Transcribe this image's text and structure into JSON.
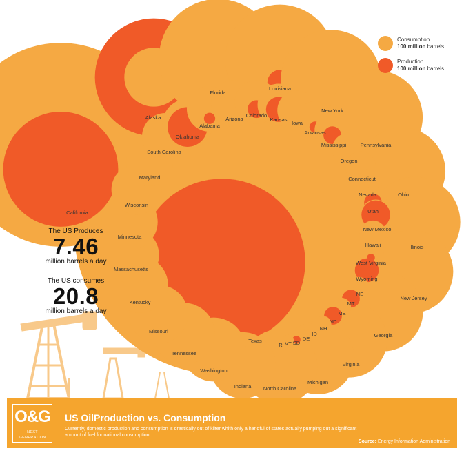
{
  "legend": {
    "consumption_label": "Consumption",
    "consumption_unit": "100 million",
    "production_label": "Production",
    "production_unit": "100 million",
    "unit_suffix": "barrels",
    "consumption_color": "#f5a943",
    "production_color": "#f05a28"
  },
  "stats": {
    "produces_caption": "The US Produces",
    "produces_value": "7.46",
    "produces_unit": "million barrels a day",
    "consumes_caption": "The US consumes",
    "consumes_value": "20.8",
    "consumes_unit": "million barrels a day"
  },
  "footer": {
    "logo_main": "O&G",
    "logo_sub": "NEXT GENERATION",
    "title": "US OilProduction vs. Consumption",
    "description": "Currently, domestic production and consumption is drastically out of kilter whith only a handful of states actually pumping out a significant amount of fuel for national consumption.",
    "source_label": "Source:",
    "source_value": "Energy Information Administration"
  },
  "chart_data": {
    "type": "bubble",
    "title": "",
    "series": [
      {
        "name": "Consumption",
        "color": "#f5a943"
      },
      {
        "name": "Production",
        "color": "#f05a28"
      }
    ],
    "units": "100 million barrels",
    "states": [
      {
        "name": "Texas",
        "consumption": 14.0,
        "production": 4.4
      },
      {
        "name": "California",
        "consumption": 6.6,
        "production": 2.1
      },
      {
        "name": "Alaska",
        "consumption": 0.55,
        "production": 2.2
      },
      {
        "name": "Florida",
        "consumption": 2.2,
        "production": 0
      },
      {
        "name": "Louisiana",
        "consumption": 1.9,
        "production": 0.1
      },
      {
        "name": "New York",
        "consumption": 1.6,
        "production": 0
      },
      {
        "name": "Pennsylvania",
        "consumption": 1.4,
        "production": 0
      },
      {
        "name": "Ohio",
        "consumption": 1.2,
        "production": 0
      },
      {
        "name": "Illinois",
        "consumption": 1.3,
        "production": 0
      },
      {
        "name": "New Jersey",
        "consumption": 1.1,
        "production": 0
      },
      {
        "name": "Georgia",
        "consumption": 1.0,
        "production": 0
      },
      {
        "name": "Virginia",
        "consumption": 0.9,
        "production": 0
      },
      {
        "name": "Michigan",
        "consumption": 0.85,
        "production": 0
      },
      {
        "name": "North Carolina",
        "consumption": 0.9,
        "production": 0
      },
      {
        "name": "Indiana",
        "consumption": 0.7,
        "production": 0
      },
      {
        "name": "Washington",
        "consumption": 0.65,
        "production": 0
      },
      {
        "name": "Tennessee",
        "consumption": 0.6,
        "production": 0
      },
      {
        "name": "Missouri",
        "consumption": 0.55,
        "production": 0
      },
      {
        "name": "Kentucky",
        "consumption": 0.5,
        "production": 0
      },
      {
        "name": "Massachusetts",
        "consumption": 0.5,
        "production": 0
      },
      {
        "name": "Minnesota",
        "consumption": 0.5,
        "production": 0
      },
      {
        "name": "Wisconsin",
        "consumption": 0.4,
        "production": 0
      },
      {
        "name": "Maryland",
        "consumption": 0.35,
        "production": 0
      },
      {
        "name": "South Carolina",
        "consumption": 0.35,
        "production": 0
      },
      {
        "name": "Oklahoma",
        "consumption": 0.4,
        "production": 0.25
      },
      {
        "name": "Alabama",
        "consumption": 0.33,
        "production": 0.02
      },
      {
        "name": "Arizona",
        "consumption": 0.35,
        "production": 0
      },
      {
        "name": "Colorado",
        "consumption": 0.3,
        "production": 0.05
      },
      {
        "name": "Kansas",
        "consumption": 0.28,
        "production": 0.1
      },
      {
        "name": "Iowa",
        "consumption": 0.25,
        "production": 0
      },
      {
        "name": "Arkansas",
        "consumption": 0.22,
        "production": 0.02
      },
      {
        "name": "Mississippi",
        "consumption": 0.2,
        "production": 0.05
      },
      {
        "name": "Oregon",
        "consumption": 0.18,
        "production": 0
      },
      {
        "name": "Connecticut",
        "consumption": 0.15,
        "production": 0
      },
      {
        "name": "Nevada",
        "consumption": 0.13,
        "production": 0
      },
      {
        "name": "Utah",
        "consumption": 0.12,
        "production": 0.05
      },
      {
        "name": "New Mexico",
        "consumption": 0.14,
        "production": 0.13
      },
      {
        "name": "Hawaii",
        "consumption": 0.11,
        "production": 0
      },
      {
        "name": "West Virginia",
        "consumption": 0.1,
        "production": 0.01
      },
      {
        "name": "Wyoming",
        "consumption": 0.09,
        "production": 0.09
      },
      {
        "name": "NE",
        "consumption": 0.08,
        "production": 0
      },
      {
        "name": "MT",
        "consumption": 0.07,
        "production": 0.05
      },
      {
        "name": "ME",
        "consumption": 0.06,
        "production": 0
      },
      {
        "name": "ND",
        "consumption": 0.05,
        "production": 0.05
      },
      {
        "name": "NH",
        "consumption": 0.04,
        "production": 0
      },
      {
        "name": "ID",
        "consumption": 0.035,
        "production": 0
      },
      {
        "name": "DE",
        "consumption": 0.03,
        "production": 0
      },
      {
        "name": "SD",
        "consumption": 0.025,
        "production": 0.01
      },
      {
        "name": "VT",
        "consumption": 0.02,
        "production": 0
      },
      {
        "name": "RI",
        "consumption": 0.02,
        "production": 0
      }
    ]
  }
}
